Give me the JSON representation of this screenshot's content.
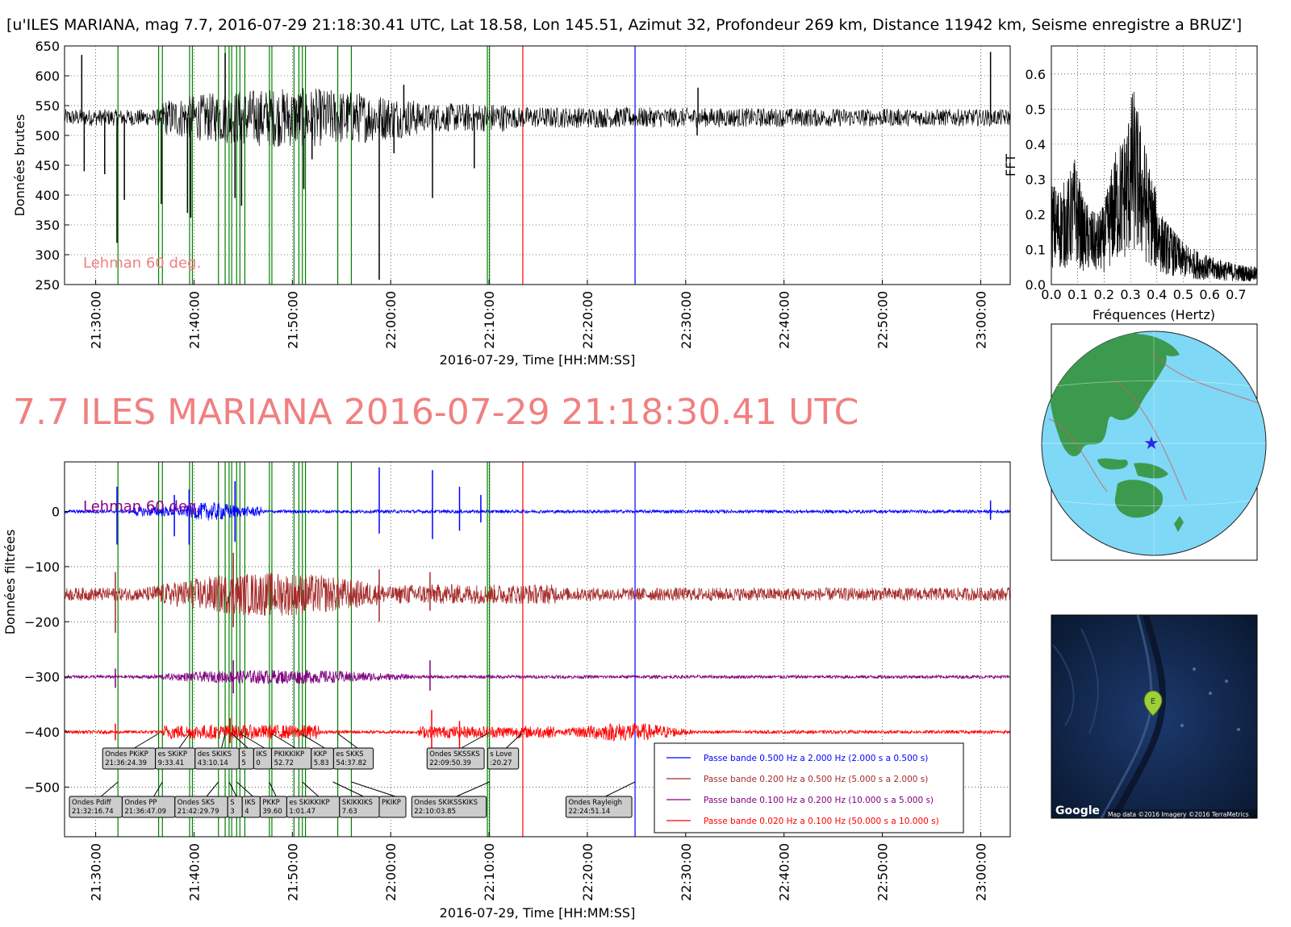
{
  "header_title": "[u'ILES MARIANA, mag 7.7, 2016-07-29 21:18:30.41 UTC, Lat 18.58, Lon 145.51, Azimut  32, Profondeur 269 km, Distance 11942 km, Seisme enregistre a BRUZ']",
  "big_title": "7.7 ILES MARIANA 2016-07-29 21:18:30.41 UTC",
  "colors": {
    "raw_trace": "#000000",
    "phase_lines": "#008000",
    "red_marker": "#ff0000",
    "blue_marker": "#0000ff",
    "lehman_top": "#f08080",
    "lehman_bottom": "#8b008b",
    "band1": "#0000ff",
    "band2": "#a52a2a",
    "band3": "#800080",
    "band4": "#ff0000",
    "ocean": "#7fd8f6",
    "land": "#3c9a4e",
    "map_dark": "#0c1e3c"
  },
  "chart_data": [
    {
      "type": "line",
      "id": "raw",
      "xlabel": "2016-07-29, Time [HH:MM:SS]",
      "ylabel": "Données brutes",
      "xlim": [
        "21:26:50",
        "23:03:00"
      ],
      "ylim": [
        250,
        650
      ],
      "yticks": [
        250,
        300,
        350,
        400,
        450,
        500,
        550,
        600,
        650
      ],
      "xticks": [
        "21:30:00",
        "21:40:00",
        "21:50:00",
        "22:00:00",
        "22:10:00",
        "22:20:00",
        "22:30:00",
        "22:40:00",
        "22:50:00",
        "23:00:00"
      ],
      "grid": true,
      "baseline": 530,
      "annotation": "Lehman 60 deg.",
      "spikes": [
        {
          "t": "21:28:35",
          "v": 635
        },
        {
          "t": "21:28:50",
          "v": 440
        },
        {
          "t": "21:30:55",
          "v": 435
        },
        {
          "t": "21:32:10",
          "v": 320
        },
        {
          "t": "21:32:55",
          "v": 392
        },
        {
          "t": "21:36:40",
          "v": 385
        },
        {
          "t": "21:39:20",
          "v": 370
        },
        {
          "t": "21:39:40",
          "v": 362
        },
        {
          "t": "21:43:10",
          "v": 638
        },
        {
          "t": "21:44:10",
          "v": 395
        },
        {
          "t": "21:44:50",
          "v": 382
        },
        {
          "t": "21:51:10",
          "v": 410
        },
        {
          "t": "21:52:00",
          "v": 460
        },
        {
          "t": "21:58:50",
          "v": 258
        },
        {
          "t": "22:00:20",
          "v": 470
        },
        {
          "t": "22:01:20",
          "v": 585
        },
        {
          "t": "22:04:15",
          "v": 395
        },
        {
          "t": "22:08:30",
          "v": 445
        },
        {
          "t": "22:31:10",
          "v": 500
        },
        {
          "t": "22:31:15",
          "v": 580
        },
        {
          "t": "23:01:00",
          "v": 640
        }
      ]
    },
    {
      "type": "line",
      "id": "fft",
      "xlabel": "Fréquences (Hertz)",
      "ylabel": "FFT",
      "xlim": [
        0.0,
        0.78
      ],
      "ylim": [
        0.0,
        0.68
      ],
      "xticks": [
        0.0,
        0.1,
        0.2,
        0.3,
        0.4,
        0.5,
        0.6,
        0.7
      ],
      "yticks": [
        0.0,
        0.1,
        0.2,
        0.3,
        0.4,
        0.5,
        0.6
      ],
      "grid": true,
      "envelope": [
        {
          "f": 0.0,
          "a": 0.3
        },
        {
          "f": 0.02,
          "a": 0.28
        },
        {
          "f": 0.06,
          "a": 0.3
        },
        {
          "f": 0.09,
          "a": 0.37
        },
        {
          "f": 0.12,
          "a": 0.25
        },
        {
          "f": 0.17,
          "a": 0.2
        },
        {
          "f": 0.2,
          "a": 0.23
        },
        {
          "f": 0.24,
          "a": 0.38
        },
        {
          "f": 0.28,
          "a": 0.45
        },
        {
          "f": 0.31,
          "a": 0.57
        },
        {
          "f": 0.34,
          "a": 0.46
        },
        {
          "f": 0.37,
          "a": 0.35
        },
        {
          "f": 0.42,
          "a": 0.2
        },
        {
          "f": 0.5,
          "a": 0.12
        },
        {
          "f": 0.6,
          "a": 0.08
        },
        {
          "f": 0.7,
          "a": 0.06
        },
        {
          "f": 0.78,
          "a": 0.05
        }
      ]
    },
    {
      "type": "line",
      "id": "filtered",
      "xlabel": "2016-07-29, Time [HH:MM:SS]",
      "ylabel": "Données filtrées",
      "xlim": [
        "21:26:50",
        "23:03:00"
      ],
      "ylim": [
        -590,
        90
      ],
      "yticks": [
        0,
        -100,
        -200,
        -300,
        -400,
        -500
      ],
      "xticks": [
        "21:30:00",
        "21:40:00",
        "21:50:00",
        "22:00:00",
        "22:10:00",
        "22:20:00",
        "22:30:00",
        "22:40:00",
        "22:50:00",
        "23:00:00"
      ],
      "grid": true,
      "annotation": "Lehman 60 deg.",
      "series": [
        {
          "name": "Passe bande 0.500 Hz a 2.000 Hz (2.000 s a 0.500 s)",
          "offset": 0,
          "color": "#0000ff"
        },
        {
          "name": "Passe bande 0.200 Hz a 0.500 Hz (5.000 s a 2.000 s)",
          "offset": -150,
          "color": "#a52a2a"
        },
        {
          "name": "Passe bande 0.100 Hz a 0.200 Hz (10.000 s a 5.000 s)",
          "offset": -300,
          "color": "#800080"
        },
        {
          "name": "Passe bande 0.020 Hz a 0.100 Hz (50.000 s a 10.000 s)",
          "offset": -400,
          "color": "#ff0000"
        }
      ],
      "legend_position": "lower-right"
    }
  ],
  "phase_lines": [
    "21:32:16",
    "21:36:24",
    "21:36:47",
    "21:39:33",
    "21:39:50",
    "21:42:29",
    "21:43:10",
    "21:43:34",
    "21:43:50",
    "21:44:20",
    "21:44:40",
    "21:45:10",
    "21:47:40",
    "21:47:55",
    "21:50:10",
    "21:50:40",
    "21:51:01",
    "21:51:20",
    "21:54:37",
    "21:56:00",
    "22:09:50",
    "22:10:03"
  ],
  "red_line": "22:13:26",
  "blue_line": "22:24:51",
  "phase_labels": [
    {
      "text": "Ondes PKiKP\n21:36:24.39",
      "t": "21:36:24",
      "row": 1
    },
    {
      "text": "es SKiKP\n9:33.41",
      "t": "21:39:33",
      "row": 1
    },
    {
      "text": "des SKIKS\n43:10.14",
      "t": "21:43:10",
      "row": 1
    },
    {
      "text": "S\n5",
      "t": "21:43:50",
      "row": 1
    },
    {
      "text": "IKS\n0",
      "t": "21:44:40",
      "row": 1
    },
    {
      "text": "PKIKKIKP\n52.72",
      "t": "21:47:52",
      "row": 1
    },
    {
      "text": "KKP\n5.83",
      "t": "21:50:50",
      "row": 1
    },
    {
      "text": "es SKKS\n54:37.82",
      "t": "21:54:37",
      "row": 1
    },
    {
      "text": "Ondes SKSSKS\n22:09:50.39",
      "t": "22:09:50",
      "row": 1
    },
    {
      "text": "s Love\n:20.27",
      "t": "22:13:20",
      "row": 1
    },
    {
      "text": "Ondes Pdiff\n21:32:16.74",
      "t": "21:32:16",
      "row": 2
    },
    {
      "text": "Ondes PP\n21:36:47.09",
      "t": "21:36:47",
      "row": 2
    },
    {
      "text": "Ondes SKS\n21:42:29.79",
      "t": "21:42:29",
      "row": 2
    },
    {
      "text": "S\n3",
      "t": "21:43:34",
      "row": 2
    },
    {
      "text": "IKS\n4",
      "t": "21:44:20",
      "row": 2
    },
    {
      "text": "PKKP\n39.60",
      "t": "21:47:39",
      "row": 2
    },
    {
      "text": "es SKIKKIKP\n1:01.47",
      "t": "21:51:01",
      "row": 2
    },
    {
      "text": "SKIKKIKS\n7.63",
      "t": "21:54:07",
      "row": 2
    },
    {
      "text": "PKIKP",
      "t": "21:56:00",
      "row": 2
    },
    {
      "text": "Ondes SKIKSSKIKS\n22:10:03.85",
      "t": "22:10:03",
      "row": 2
    },
    {
      "text": "Ondes Rayleigh\n22:24:51.14",
      "t": "22:24:51",
      "row": 2
    }
  ],
  "map": {
    "google_logo": "Google",
    "attribution": "Map data ©2016  Imagery ©2016 TerraMetrics",
    "marker_label": "E",
    "marker_icon": "map-pin-icon"
  },
  "globe": {
    "epicenter_icon": "star-icon"
  }
}
